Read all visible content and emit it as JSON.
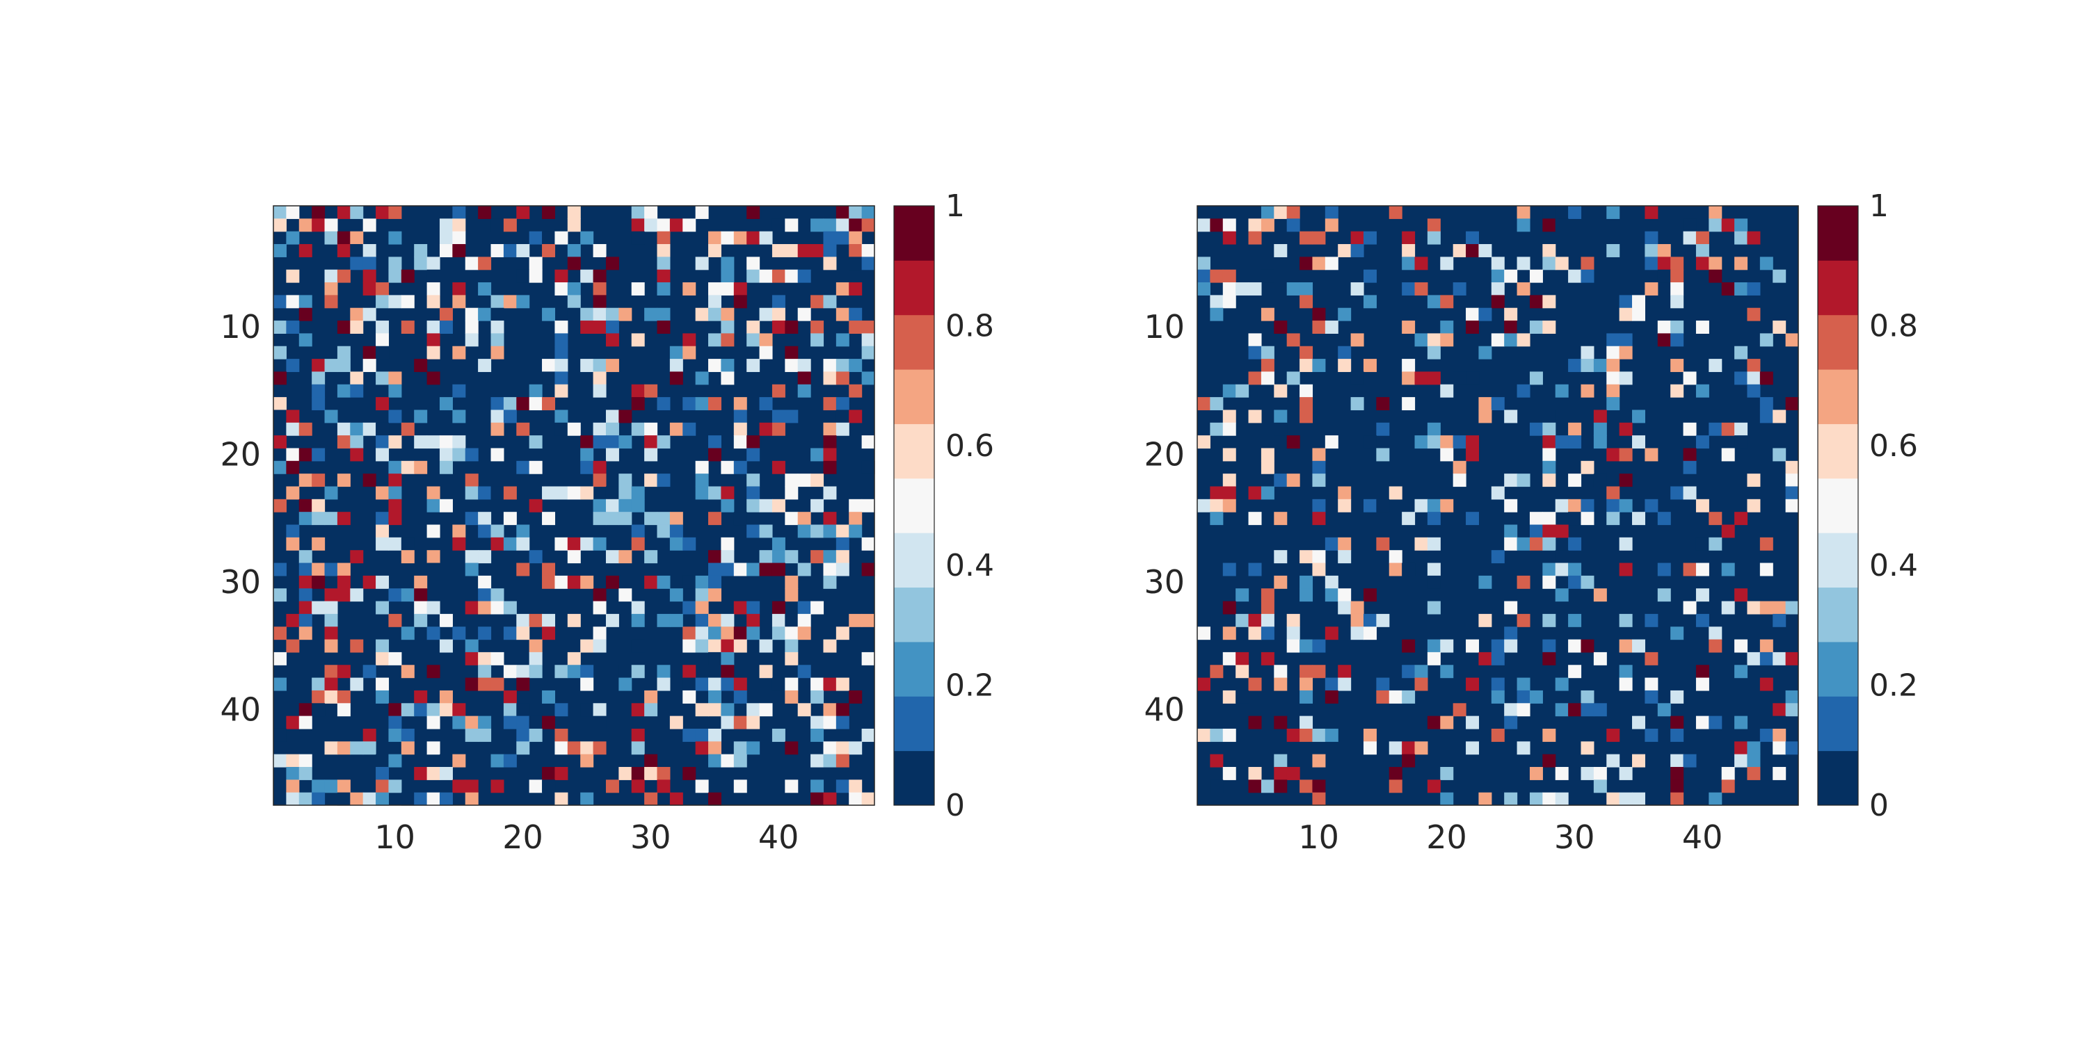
{
  "figure": {
    "background": "#ffffff"
  },
  "colormap": {
    "name": "RdBu_r-discrete",
    "colors": [
      "#053061",
      "#2166ac",
      "#4393c3",
      "#92c5de",
      "#d1e5f0",
      "#f7f7f7",
      "#fddbc7",
      "#f4a582",
      "#d6604d",
      "#b2182b",
      "#67001f"
    ]
  },
  "chart_data": [
    {
      "type": "heatmap",
      "rows": 47,
      "cols": 47,
      "xlim": [
        0.5,
        47.5
      ],
      "ylim": [
        0.5,
        47.5
      ],
      "y_inverted": true,
      "x_ticks": [
        10,
        20,
        30,
        40
      ],
      "x_tick_labels": [
        "10",
        "20",
        "30",
        "40"
      ],
      "y_ticks": [
        10,
        20,
        30,
        40
      ],
      "y_tick_labels": [
        "10",
        "20",
        "30",
        "40"
      ],
      "value_range": [
        0,
        1
      ],
      "zero_fraction": 0.62,
      "seed": 12345,
      "central_blue_bias": true,
      "colorbar": {
        "ticks": [
          0,
          0.2,
          0.4,
          0.6,
          0.8,
          1
        ],
        "tick_labels": [
          "0",
          "0.2",
          "0.4",
          "0.6",
          "0.8",
          "1"
        ],
        "levels": 11
      }
    },
    {
      "type": "heatmap",
      "rows": 47,
      "cols": 47,
      "xlim": [
        0.5,
        47.5
      ],
      "ylim": [
        0.5,
        47.5
      ],
      "y_inverted": true,
      "x_ticks": [
        10,
        20,
        30,
        40
      ],
      "x_tick_labels": [
        "10",
        "20",
        "30",
        "40"
      ],
      "y_ticks": [
        10,
        20,
        30,
        40
      ],
      "y_tick_labels": [
        "10",
        "20",
        "30",
        "40"
      ],
      "value_range": [
        0,
        1
      ],
      "zero_fraction": 0.72,
      "seed": 67890,
      "central_blue_bias": true,
      "colorbar": {
        "ticks": [
          0,
          0.2,
          0.4,
          0.6,
          0.8,
          1
        ],
        "tick_labels": [
          "0",
          "0.2",
          "0.4",
          "0.6",
          "0.8",
          "1"
        ],
        "levels": 11
      }
    }
  ]
}
